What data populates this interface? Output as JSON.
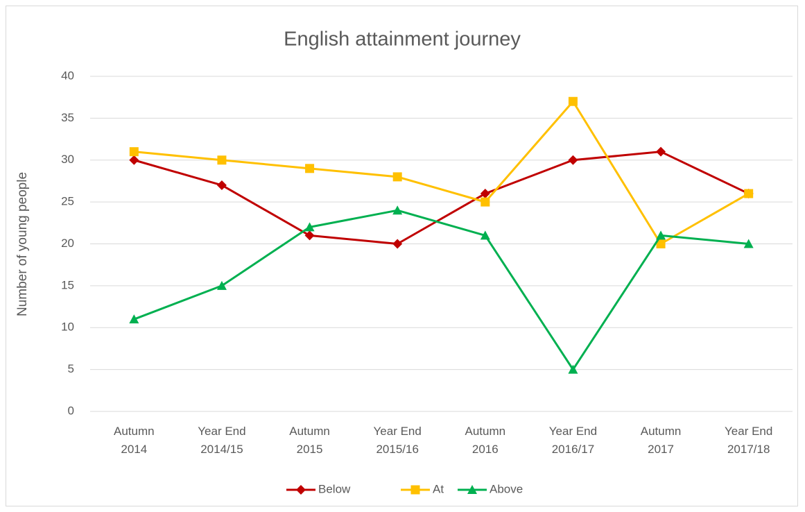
{
  "chart_data": {
    "type": "line",
    "title": "English attainment journey",
    "y_label": "Number of young people",
    "categories": [
      "Autumn 2014",
      "Year End 2014/15",
      "Autumn 2015",
      "Year End 2015/16",
      "Autumn 2016",
      "Year End 2016/17",
      "Autumn 2017",
      "Year End 2017/18"
    ],
    "series": [
      {
        "name": "Below",
        "color": "#c00000",
        "marker": "diamond",
        "values": [
          30,
          27,
          21,
          20,
          26,
          30,
          31,
          26
        ]
      },
      {
        "name": "At",
        "color": "#ffc000",
        "marker": "square",
        "values": [
          31,
          30,
          29,
          28,
          25,
          37,
          20,
          26
        ]
      },
      {
        "name": "Above",
        "color": "#00b050",
        "marker": "triangle",
        "values": [
          11,
          15,
          22,
          24,
          21,
          5,
          21,
          20
        ]
      }
    ],
    "ylim": [
      0,
      40
    ],
    "yticks": [
      0,
      5,
      10,
      15,
      20,
      25,
      30,
      35,
      40
    ],
    "grid": true,
    "legend": "bottom"
  }
}
